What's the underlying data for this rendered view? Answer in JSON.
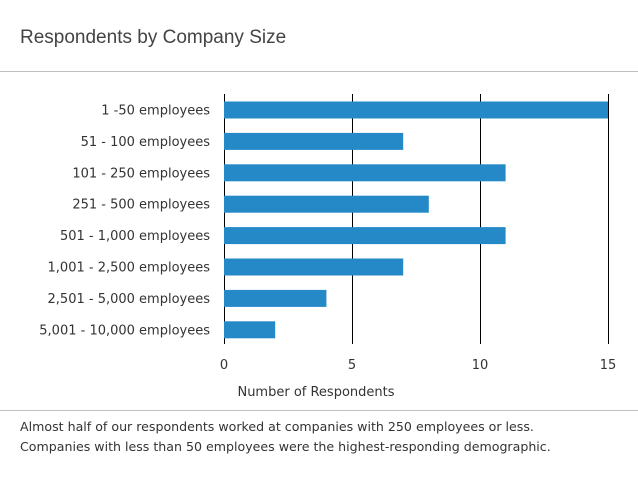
{
  "chart_data": {
    "type": "bar",
    "orientation": "horizontal",
    "title": "Respondents by Company Size",
    "categories": [
      "1 -50 employees",
      "51 - 100 employees",
      "101 - 250 employees",
      "251 - 500 employees",
      "501 - 1,000 employees",
      "1,001 - 2,500 employees",
      "2,501 - 5,000 employees",
      "5,001 - 10,000 employees"
    ],
    "values": [
      15,
      7,
      11,
      8,
      11,
      7,
      4,
      2
    ],
    "xlabel": "Number of Respondents",
    "ylabel": "",
    "xlim": [
      0,
      15
    ],
    "xticks": [
      "0",
      "5",
      "10",
      "15"
    ],
    "grid": true,
    "bar_color": "#2589c8"
  },
  "caption": {
    "line1": "Almost half of our respondents worked at companies with 250 employees or less.",
    "line2": "Companies with less than 50 employees were the highest-responding demographic."
  }
}
